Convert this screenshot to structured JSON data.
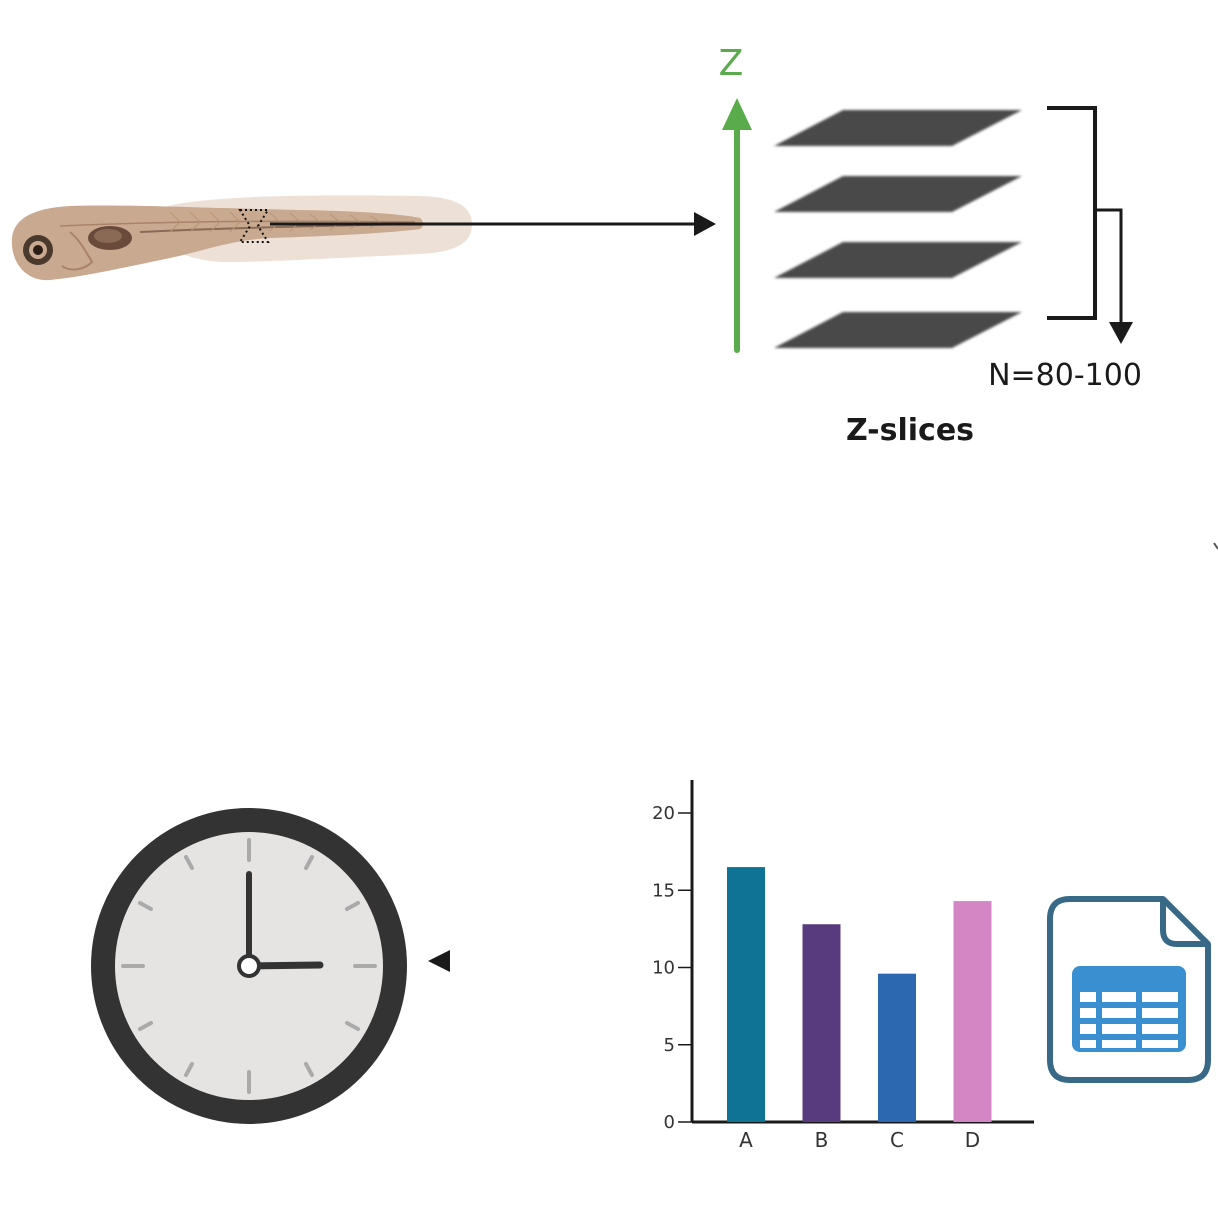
{
  "diagram": {
    "z_axis_label": "Z",
    "stack_count_label": "N=80-100",
    "zslices_title": "Z-slices",
    "colors": {
      "axis_green": "#5aab4b",
      "slice_fill": "#4a4a4a",
      "arrow": "#1a1a1a",
      "clock_rim": "#333333",
      "clock_face": "#e6e4e3",
      "spreadsheet_outline": "#386a88",
      "spreadsheet_grid": "#3a8fd0"
    },
    "icons": [
      "zebrafish-larva-icon",
      "clock-icon",
      "spreadsheet-file-icon"
    ]
  },
  "chart_data": {
    "type": "bar",
    "categories": [
      "A",
      "B",
      "C",
      "D"
    ],
    "values": [
      16.5,
      12.8,
      9.6,
      14.3
    ],
    "colors": [
      "#0f7395",
      "#573b7e",
      "#2c68b0",
      "#d486c4"
    ],
    "yticks": [
      "0",
      "5",
      "10",
      "15",
      "20"
    ],
    "ylim": [
      0,
      20
    ],
    "title": "",
    "xlabel": "",
    "ylabel": ""
  }
}
